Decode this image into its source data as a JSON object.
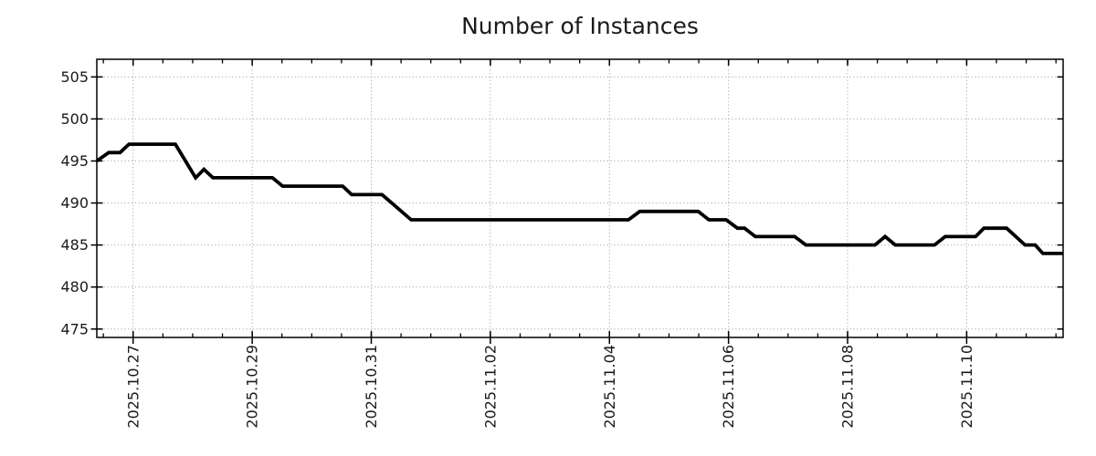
{
  "colors": {
    "background": "#ffffff",
    "frame": "#000000",
    "grid": "#a8a8a8",
    "text": "#1a1a1a",
    "line": "#000000"
  },
  "chart_data": {
    "type": "line",
    "title": "Number of Instances",
    "xlabel": "",
    "ylabel": "",
    "legend": "none",
    "grid": "dotted",
    "x_unit": "days since 2025.10.26 00:00 (1.0 = 2025.10.27)",
    "xlim": [
      0.39,
      16.62
    ],
    "ylim": [
      474.0,
      507.1
    ],
    "y_ticks": [
      475,
      480,
      485,
      490,
      495,
      500,
      505
    ],
    "x_minor_tick_step": 0.5,
    "x_major_ticks": [
      {
        "t": 1,
        "label": "2025.10.27"
      },
      {
        "t": 3,
        "label": "2025.10.29"
      },
      {
        "t": 5,
        "label": "2025.10.31"
      },
      {
        "t": 7,
        "label": "2025.11.02"
      },
      {
        "t": 9,
        "label": "2025.11.04"
      },
      {
        "t": 11,
        "label": "2025.11.06"
      },
      {
        "t": 13,
        "label": "2025.11.08"
      },
      {
        "t": 15,
        "label": "2025.11.10"
      }
    ],
    "series": [
      {
        "name": "instances",
        "color": "#000000",
        "line_width": 3.8,
        "points": [
          [
            0.39,
            495
          ],
          [
            0.59,
            496
          ],
          [
            0.78,
            496
          ],
          [
            0.93,
            497
          ],
          [
            1.71,
            497
          ],
          [
            2.05,
            493
          ],
          [
            2.19,
            494
          ],
          [
            2.34,
            493
          ],
          [
            3.34,
            493
          ],
          [
            3.51,
            492
          ],
          [
            4.52,
            492
          ],
          [
            4.67,
            491
          ],
          [
            5.18,
            491
          ],
          [
            5.67,
            488
          ],
          [
            9.32,
            488
          ],
          [
            9.51,
            489
          ],
          [
            10.49,
            489
          ],
          [
            10.67,
            488
          ],
          [
            10.96,
            488
          ],
          [
            11.15,
            487
          ],
          [
            11.27,
            487
          ],
          [
            11.45,
            486
          ],
          [
            12.11,
            486
          ],
          [
            12.3,
            485
          ],
          [
            13.46,
            485
          ],
          [
            13.63,
            486
          ],
          [
            13.8,
            485
          ],
          [
            14.46,
            485
          ],
          [
            14.64,
            486
          ],
          [
            15.15,
            486
          ],
          [
            15.29,
            487
          ],
          [
            15.67,
            487
          ],
          [
            15.98,
            485
          ],
          [
            16.15,
            485
          ],
          [
            16.28,
            484
          ],
          [
            16.62,
            484
          ]
        ]
      }
    ]
  }
}
